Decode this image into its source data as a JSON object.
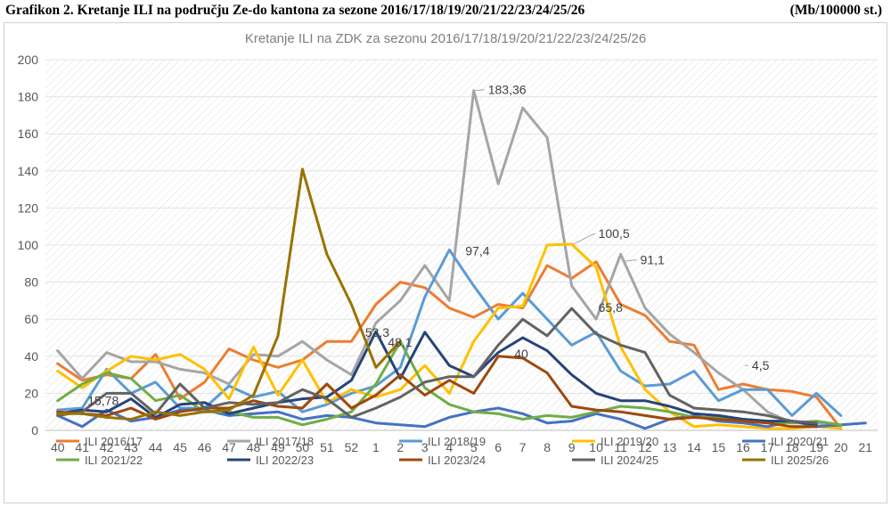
{
  "header": {
    "title": "Grafikon 2. Kretanje ILI na području Ze-do kantona za sezone 2016/17/18/19/20/21/22/23/24/25/26",
    "unit": "(Mb/100000 st.)"
  },
  "chart_data": {
    "type": "line",
    "title": "Kretanje ILI na ZDK za sezonu 2016/17/18/19/20/21/22/23/24/25/26",
    "xlabel": "",
    "ylabel": "",
    "ylim": [
      0,
      200
    ],
    "yticks": [
      0,
      20,
      40,
      60,
      80,
      100,
      120,
      140,
      160,
      180,
      200
    ],
    "grid": "diagonal-hatch",
    "legend_position": "bottom",
    "categories": [
      "40",
      "41",
      "42",
      "43",
      "44",
      "45",
      "46",
      "47",
      "48",
      "49",
      "50",
      "51",
      "52",
      "1",
      "2",
      "3",
      "4",
      "5",
      "6",
      "7",
      "8",
      "9",
      "10",
      "11",
      "12",
      "13",
      "14",
      "15",
      "16",
      "17",
      "18",
      "19",
      "20",
      "21"
    ],
    "series": [
      {
        "name": "ILI 2016/17",
        "color": "#ED7D31",
        "values": [
          36,
          27,
          30,
          28,
          41,
          17,
          26,
          44,
          38,
          34,
          38,
          48,
          48,
          68,
          80,
          77,
          66,
          61,
          68,
          66,
          89,
          82,
          91,
          68,
          62,
          48,
          46,
          22,
          25,
          22,
          21,
          18,
          1,
          null
        ]
      },
      {
        "name": "ILI 2017/18",
        "color": "#A5A5A5",
        "values": [
          43,
          28,
          42,
          37,
          37,
          33,
          31,
          25,
          41,
          40,
          48,
          38,
          30,
          58,
          70,
          89,
          70,
          183.36,
          133,
          174,
          158,
          78,
          60,
          95,
          66,
          52,
          42,
          31,
          22,
          10,
          4,
          4,
          2,
          null
        ]
      },
      {
        "name": "ILI 2018/19",
        "color": "#5B9BD5",
        "values": [
          11,
          12,
          33,
          20,
          26,
          12,
          12,
          24,
          18,
          21,
          10,
          14,
          20,
          24,
          34,
          72,
          97.4,
          78,
          60,
          74,
          60,
          46,
          53,
          32,
          24,
          25,
          32,
          16,
          22,
          22,
          8,
          20,
          8,
          null
        ]
      },
      {
        "name": "ILI 2019/20",
        "color": "#FFC000",
        "values": [
          32,
          23,
          32,
          40,
          38,
          41,
          33,
          17,
          45,
          19,
          38,
          15,
          22,
          18,
          22,
          35,
          20,
          48,
          66,
          67,
          100,
          100.5,
          88,
          45,
          22,
          10,
          2,
          3,
          2,
          1,
          1,
          2,
          1,
          null
        ]
      },
      {
        "name": "ILI 2020/21",
        "color": "#4472C4",
        "values": [
          8,
          2,
          11,
          5,
          7,
          11,
          11,
          8,
          9,
          10,
          6,
          8,
          7,
          4,
          3,
          2,
          7,
          10,
          12,
          9,
          4,
          5,
          9,
          6,
          1,
          6,
          8,
          5,
          4,
          2,
          5,
          2,
          3,
          4
        ]
      },
      {
        "name": "ILI 2021/22",
        "color": "#70AD47",
        "values": [
          16,
          25,
          31,
          28,
          16,
          19,
          10,
          10,
          7,
          7,
          3,
          6,
          10,
          25,
          48,
          23,
          14,
          10,
          9,
          6,
          8,
          7,
          10,
          13,
          12,
          10,
          7,
          7,
          6,
          5,
          4,
          5,
          3,
          null
        ]
      },
      {
        "name": "ILI 2022/23",
        "color": "#264478",
        "values": [
          9,
          11,
          10,
          17,
          7,
          14,
          15,
          9,
          12,
          15,
          17,
          18,
          27,
          53.3,
          28,
          53,
          35,
          29,
          42,
          50,
          43,
          30,
          20,
          16,
          16,
          13,
          9,
          8,
          6,
          5,
          5,
          3,
          null,
          null
        ]
      },
      {
        "name": "ILI 2023/24",
        "color": "#9E480E",
        "values": [
          10,
          9,
          8,
          12,
          6,
          10,
          12,
          12,
          16,
          13,
          12,
          25,
          12,
          19,
          30,
          19,
          27,
          20,
          40,
          39,
          31,
          13,
          11,
          10,
          8,
          6,
          7,
          6,
          5,
          4,
          2,
          2,
          null,
          null
        ]
      },
      {
        "name": "ILI 2024/25",
        "color": "#636363",
        "values": [
          8,
          10,
          20,
          20,
          9,
          25,
          12,
          15,
          14,
          15,
          22,
          17,
          7,
          12,
          18,
          26,
          29,
          29,
          46,
          60,
          51,
          65.8,
          52,
          46,
          42,
          19,
          12,
          11,
          10,
          8,
          5,
          4,
          null,
          null
        ]
      },
      {
        "name": "ILI 2025/26",
        "color": "#997300",
        "values": [
          9,
          9,
          7,
          6,
          10,
          8,
          10,
          11,
          19,
          51,
          141,
          95,
          68,
          34,
          48.1,
          null,
          null,
          null,
          null,
          null,
          null,
          null,
          null,
          null,
          null,
          null,
          null,
          null,
          null,
          null,
          null,
          null,
          null,
          null
        ]
      }
    ],
    "annotations": [
      {
        "text": "15,78",
        "x": "41"
      },
      {
        "text": "183,36",
        "x": "5"
      },
      {
        "text": "97,4",
        "x": "4"
      },
      {
        "text": "100,5",
        "x": "9"
      },
      {
        "text": "91,1",
        "x": "11"
      },
      {
        "text": "53,3",
        "x": "1"
      },
      {
        "text": "48,1",
        "x": "2"
      },
      {
        "text": "65,8",
        "x": "9"
      },
      {
        "text": "40",
        "x": "6"
      },
      {
        "text": "4,5",
        "x": "16"
      }
    ]
  }
}
